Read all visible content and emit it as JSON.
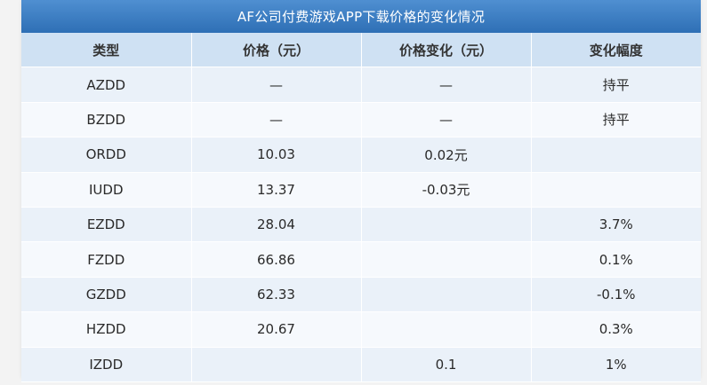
{
  "table": {
    "title": "AF公司付费游戏APP下载价格的变化情况",
    "headers": [
      "类型",
      "价格（元）",
      "价格变化（元）",
      "变化幅度"
    ],
    "rows": [
      [
        "AZDD",
        "—",
        "—",
        "持平"
      ],
      [
        "BZDD",
        "—",
        "—",
        "持平"
      ],
      [
        "ORDD",
        "10.03",
        "0.02元",
        ""
      ],
      [
        "IUDD",
        "13.37",
        "-0.03元",
        ""
      ],
      [
        "EZDD",
        "28.04",
        "",
        "3.7%"
      ],
      [
        "FZDD",
        "66.86",
        "",
        "0.1%"
      ],
      [
        "GZDD",
        "62.33",
        "",
        "-0.1%"
      ],
      [
        "HZDD",
        "20.67",
        "",
        "0.3%"
      ],
      [
        "IZDD",
        "",
        "0.1",
        "1%"
      ]
    ]
  },
  "colors": {
    "title_bar": "#2e6fb5",
    "header_row": "#cfe1f3",
    "row_odd": "#eaf1f9",
    "row_even": "#f6f9fd"
  }
}
